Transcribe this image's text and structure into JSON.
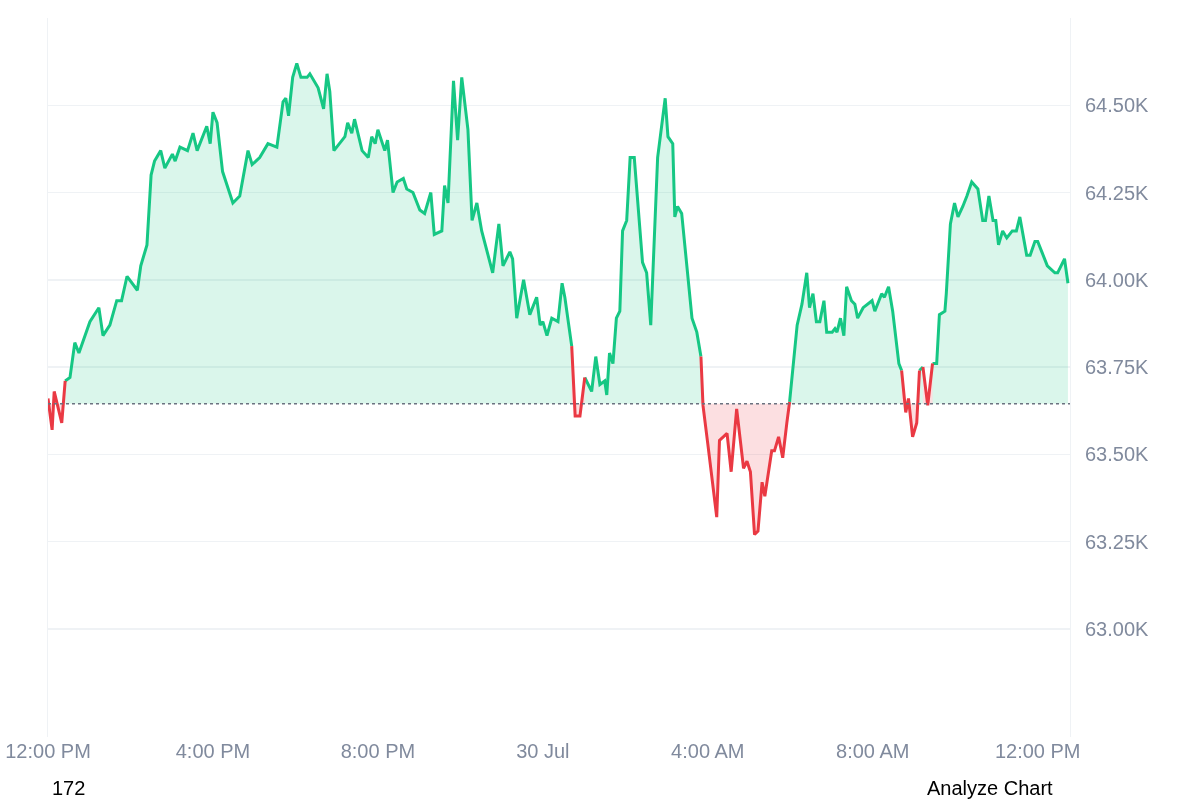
{
  "chart_data": {
    "type": "area",
    "xlim": [
      "--07-29T12:00",
      "--07-30T12:47"
    ],
    "ylim": [
      62.69,
      64.75
    ],
    "xticks": [
      {
        "value": "--07-29T12:00",
        "label": "12:00 PM"
      },
      {
        "value": "--07-29T16:00",
        "label": "4:00 PM"
      },
      {
        "value": "--07-29T20:00",
        "label": "8:00 PM"
      },
      {
        "value": "--07-30T00:00",
        "label": "30 Jul"
      },
      {
        "value": "--07-30T04:00",
        "label": "4:00 AM"
      },
      {
        "value": "--07-30T08:00",
        "label": "8:00 AM"
      },
      {
        "value": "--07-30T12:00",
        "label": "12:00 PM"
      }
    ],
    "yticks": [
      {
        "value": 63,
        "label": "63.00K"
      },
      {
        "value": 63.25,
        "label": "63.25K"
      },
      {
        "value": 63.5,
        "label": "63.50K"
      },
      {
        "value": 63.75,
        "label": "63.75K"
      },
      {
        "value": 64,
        "label": "64.00K"
      },
      {
        "value": 64.25,
        "label": "64.25K"
      },
      {
        "value": 64.5,
        "label": "64.50K"
      }
    ],
    "grid": "y",
    "marker": "none",
    "ref_lines": [
      {
        "axis": "y",
        "value": 63.645,
        "color": "#6b7280",
        "line_style": "dotted"
      }
    ],
    "annotations": [
      "172",
      "Analyze Chart"
    ],
    "series": [
      {
        "color": "#16c784",
        "x": [
          "--07-29T12:25",
          "--07-29T12:32",
          "--07-29T12:39",
          "--07-29T12:45",
          "--07-29T13:01",
          "--07-29T13:14",
          "--07-29T13:20",
          "--07-29T13:30",
          "--07-29T13:40",
          "--07-29T13:47",
          "--07-29T13:55",
          "--07-29T14:10",
          "--07-29T14:15",
          "--07-29T14:24",
          "--07-29T14:30",
          "--07-29T14:35",
          "--07-29T14:44",
          "--07-29T14:50",
          "--07-29T15:01",
          "--07-29T15:05",
          "--07-29T15:12",
          "--07-29T15:23",
          "--07-29T15:31",
          "--07-29T15:37",
          "--07-29T15:51",
          "--07-29T15:56",
          "--07-29T16:00",
          "--07-29T16:06",
          "--07-29T16:14",
          "--07-29T16:29",
          "--07-29T16:39",
          "--07-29T16:51",
          "--07-29T16:57",
          "--07-29T17:08",
          "--07-29T17:20",
          "--07-29T17:33",
          "--07-29T17:42",
          "--07-29T17:46",
          "--07-29T17:50",
          "--07-29T17:56",
          "--07-29T18:02",
          "--07-29T18:08",
          "--07-29T18:17",
          "--07-29T18:21",
          "--07-29T18:33",
          "--07-29T18:41",
          "--07-29T18:46",
          "--07-29T18:50",
          "--07-29T18:56",
          "--07-29T19:12",
          "--07-29T19:16",
          "--07-29T19:22",
          "--07-29T19:26",
          "--07-29T19:37",
          "--07-29T19:46",
          "--07-29T19:51",
          "--07-29T19:56",
          "--07-29T20:00",
          "--07-29T20:10",
          "--07-29T20:14",
          "--07-29T20:22",
          "--07-29T20:28",
          "--07-29T20:37",
          "--07-29T20:42",
          "--07-29T20:51",
          "--07-29T21:01",
          "--07-29T21:08",
          "--07-29T21:17",
          "--07-29T21:22",
          "--07-29T21:33",
          "--07-29T21:37",
          "--07-29T21:42",
          "--07-29T21:50",
          "--07-29T21:56",
          "--07-29T22:02",
          "--07-29T22:11",
          "--07-29T22:17",
          "--07-29T22:24",
          "--07-29T22:31",
          "--07-29T22:47",
          "--07-29T22:56",
          "--07-29T23:02",
          "--07-29T23:12",
          "--07-29T23:16",
          "--07-29T23:22",
          "--07-29T23:32",
          "--07-29T23:41",
          "--07-29T23:51",
          "--07-29T23:56",
          "--07-30T00:00",
          "--07-30T00:06",
          "--07-30T00:13",
          "--07-30T00:22",
          "--07-30T00:28",
          "--07-30T00:32",
          "--07-30T00:42",
          "--07-30T00:48",
          "--07-30T01:01",
          "--07-30T01:11",
          "--07-30T01:17",
          "--07-30T01:23",
          "--07-30T01:30",
          "--07-30T01:33",
          "--07-30T01:37",
          "--07-30T01:42",
          "--07-30T01:47",
          "--07-30T01:52",
          "--07-30T01:56",
          "--07-30T02:02",
          "--07-30T02:07",
          "--07-30T02:13",
          "--07-30T02:25",
          "--07-30T02:31",
          "--07-30T02:37",
          "--07-30T02:47",
          "--07-30T02:58",
          "--07-30T03:02",
          "--07-30T03:09",
          "--07-30T03:12",
          "--07-30T03:16",
          "--07-30T03:22",
          "--07-30T03:37",
          "--07-30T03:44",
          "--07-30T03:50",
          "--07-30T05:00",
          "--07-30T05:59",
          "--07-30T06:10",
          "--07-30T06:17",
          "--07-30T06:24",
          "--07-30T06:28",
          "--07-30T06:33",
          "--07-30T06:38",
          "--07-30T06:43",
          "--07-30T06:49",
          "--07-30T06:53",
          "--07-30T07:01",
          "--07-30T07:05",
          "--07-30T07:08",
          "--07-30T07:13",
          "--07-30T07:18",
          "--07-30T07:22",
          "--07-30T07:29",
          "--07-30T07:34",
          "--07-30T07:38",
          "--07-30T07:46",
          "--07-30T07:59",
          "--07-30T08:03",
          "--07-30T08:13",
          "--07-30T08:17",
          "--07-30T08:23",
          "--07-30T08:29",
          "--07-30T08:38",
          "--07-30T08:42",
          "--07-30T08:48",
          "--07-30T08:52",
          "--07-30T08:58",
          "--07-30T09:08",
          "--07-30T09:13",
          "--07-30T09:20",
          "--07-30T09:27",
          "--07-30T09:33",
          "--07-30T09:37",
          "--07-30T09:45",
          "--07-30T09:47",
          "--07-30T09:53",
          "--07-30T09:59",
          "--07-30T10:04",
          "--07-30T10:11",
          "--07-30T10:17",
          "--07-30T10:24",
          "--07-30T10:33",
          "--07-30T10:40",
          "--07-30T10:44",
          "--07-30T10:49",
          "--07-30T10:55",
          "--07-30T10:59",
          "--07-30T11:03",
          "--07-30T11:09",
          "--07-30T11:15",
          "--07-30T11:23",
          "--07-30T11:29",
          "--07-30T11:34",
          "--07-30T11:44",
          "--07-30T11:49",
          "--07-30T11:56",
          "--07-30T12:00",
          "--07-30T12:06",
          "--07-30T12:14",
          "--07-30T12:25",
          "--07-30T12:29",
          "--07-30T12:39",
          "--07-30T12:44"
        ],
        "values": [
          63.71,
          63.72,
          63.82,
          63.79,
          63.88,
          63.92,
          63.84,
          63.87,
          63.94,
          63.94,
          64.01,
          63.97,
          64.04,
          64.1,
          64.3,
          64.34,
          64.37,
          64.32,
          64.36,
          64.34,
          64.38,
          64.37,
          64.42,
          64.37,
          64.44,
          64.39,
          64.48,
          64.45,
          64.31,
          64.22,
          64.24,
          64.37,
          64.33,
          64.35,
          64.39,
          64.38,
          64.51,
          64.52,
          64.47,
          64.58,
          64.62,
          64.58,
          64.58,
          64.59,
          64.55,
          64.49,
          64.59,
          64.54,
          64.37,
          64.41,
          64.45,
          64.42,
          64.46,
          64.37,
          64.35,
          64.41,
          64.39,
          64.43,
          64.37,
          64.4,
          64.25,
          64.28,
          64.29,
          64.26,
          64.25,
          64.2,
          64.19,
          64.25,
          64.13,
          64.14,
          64.27,
          64.22,
          64.57,
          64.4,
          64.58,
          64.43,
          64.17,
          64.22,
          64.14,
          64.02,
          64.16,
          64.04,
          64.08,
          64.06,
          63.89,
          64.0,
          63.9,
          63.95,
          63.87,
          63.88,
          63.84,
          63.89,
          63.88,
          63.99,
          63.95,
          63.81,
          null,
          63.72,
          63.68,
          63.78,
          63.7,
          63.71,
          63.67,
          63.79,
          63.76,
          63.89,
          63.91,
          64.14,
          64.17,
          64.35,
          64.35,
          64.05,
          64.02,
          63.87,
          64.35,
          64.52,
          64.41,
          64.39,
          64.18,
          64.21,
          64.19,
          63.89,
          63.85,
          63.78,
          null,
          63.65,
          63.87,
          63.93,
          64.02,
          63.92,
          63.96,
          63.88,
          63.88,
          63.94,
          63.85,
          63.85,
          63.86,
          63.85,
          63.89,
          63.84,
          63.98,
          63.94,
          63.93,
          63.89,
          63.92,
          63.94,
          63.91,
          63.96,
          63.95,
          63.98,
          63.91,
          63.76,
          63.74,
          null,
          null,
          null,
          63.74,
          63.75,
          null,
          63.76,
          63.76,
          63.9,
          63.91,
          63.96,
          64.16,
          64.22,
          64.18,
          64.21,
          64.24,
          64.28,
          64.26,
          64.17,
          64.17,
          64.24,
          64.17,
          64.17,
          64.1,
          64.14,
          64.12,
          64.14,
          64.14,
          64.18,
          64.07,
          64.07,
          64.11,
          64.11,
          64.08,
          64.04,
          64.02,
          64.02,
          64.06,
          63.99
        ]
      },
      {
        "color": "#ea3943",
        "x": [
          "--07-29T12:00",
          "--07-29T12:06",
          "--07-29T12:09",
          "--07-29T12:20",
          "--07-29T12:25",
          "--07-29T12:30",
          "--07-30T00:42",
          "--07-30T00:47",
          "--07-30T00:54",
          "--07-30T01:01",
          "--07-30T02:00",
          "--07-30T03:50",
          "--07-30T03:53",
          "--07-30T04:00",
          "--07-30T04:13",
          "--07-30T04:17",
          "--07-30T04:28",
          "--07-30T04:34",
          "--07-30T04:42",
          "--07-30T04:52",
          "--07-30T04:57",
          "--07-30T05:02",
          "--07-30T05:08",
          "--07-30T05:13",
          "--07-30T05:19",
          "--07-30T05:23",
          "--07-30T05:33",
          "--07-30T05:37",
          "--07-30T05:43",
          "--07-30T05:49",
          "--07-30T05:55",
          "--07-30T05:59",
          "--07-30T07:00",
          "--07-30T08:42",
          "--07-30T08:48",
          "--07-30T08:52",
          "--07-30T08:58",
          "--07-30T09:04",
          "--07-30T09:08",
          "--07-30T09:11",
          "--07-30T09:13",
          "--07-30T09:20",
          "--07-30T09:27"
        ],
        "values": [
          63.66,
          63.57,
          63.68,
          63.59,
          63.71,
          null,
          63.81,
          63.61,
          63.61,
          63.72,
          null,
          63.78,
          63.64,
          63.53,
          63.32,
          63.54,
          63.56,
          63.45,
          63.63,
          63.46,
          63.48,
          63.45,
          63.27,
          63.28,
          63.42,
          63.38,
          63.51,
          63.51,
          63.55,
          63.49,
          63.59,
          63.65,
          null,
          63.74,
          63.62,
          63.66,
          63.55,
          63.59,
          63.74,
          null,
          63.75,
          63.64,
          63.76
        ]
      }
    ]
  }
}
